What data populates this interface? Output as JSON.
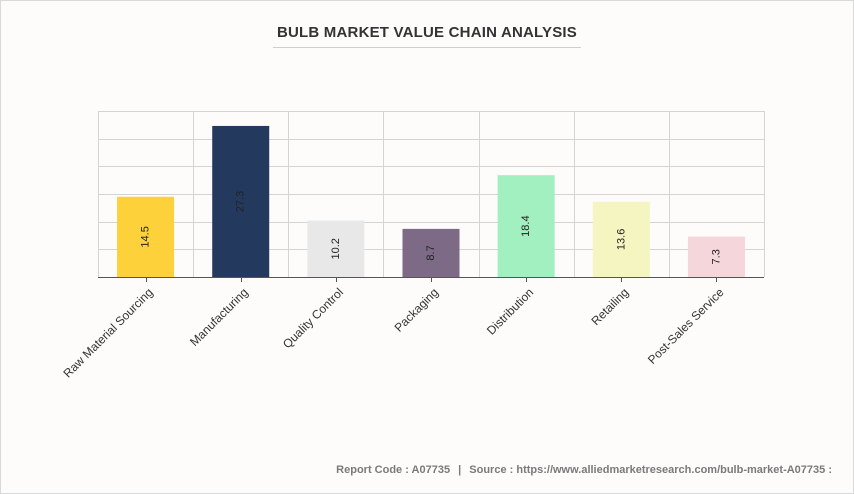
{
  "chart_data": {
    "type": "bar",
    "title": "BULB MARKET VALUE CHAIN ANALYSIS",
    "categories": [
      "Raw Material Sourcing",
      "Manufacturing",
      "Quality Control",
      "Packaging",
      "Distribution",
      "Retailing",
      "Post-Sales Service"
    ],
    "values": [
      14.5,
      27.3,
      10.2,
      8.7,
      18.4,
      13.6,
      7.3
    ],
    "value_labels": [
      "14.5",
      "27.3",
      "10.2",
      "8.7",
      "18.4",
      "13.6",
      "7.3"
    ],
    "colors": [
      "#fdd13a",
      "#233a5e",
      "#e8e8e8",
      "#7c6a86",
      "#a2efbf",
      "#f5f5c2",
      "#f5d6da"
    ],
    "label_colors": [
      "#222222",
      "#222222",
      "#222222",
      "#222222",
      "#222222",
      "#222222",
      "#222222"
    ],
    "xlabel": "",
    "ylabel": "",
    "ylim": [
      0,
      30
    ],
    "grid": true,
    "legend": "none"
  },
  "footer": {
    "report_code": "Report Code : A07735",
    "separator": "|",
    "source": "Source : https://www.alliedmarketresearch.com/bulb-market-A07735 :"
  }
}
